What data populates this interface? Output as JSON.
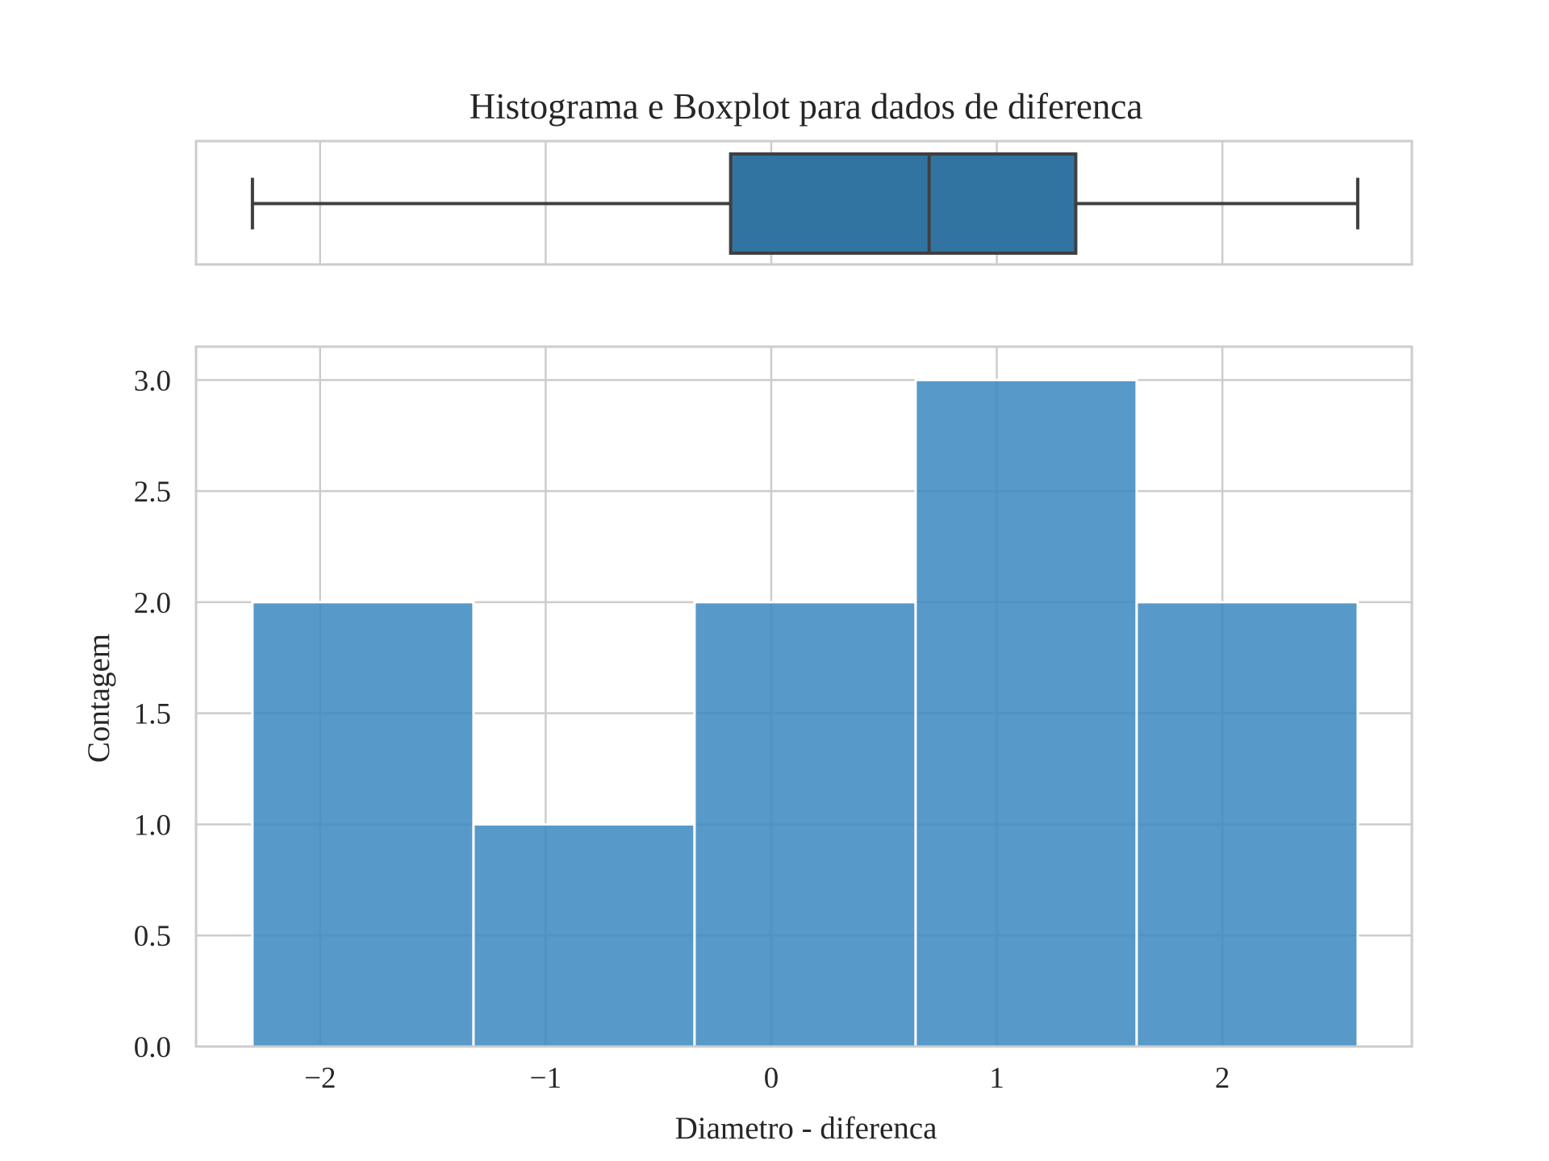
{
  "chart_data": [
    {
      "type": "box",
      "title": "Histograma e Boxplot para dados de diferenca",
      "whisker_low": -2.3,
      "q1": -0.18,
      "median": 0.7,
      "q3": 1.35,
      "whisker_high": 2.6,
      "xlim": [
        -2.55,
        2.84
      ],
      "grid": true,
      "color": "#3274a1"
    },
    {
      "type": "histogram",
      "xlabel": "Diametro - diferenca",
      "ylabel": "Contagem",
      "bin_edges": [
        -2.3,
        -1.32,
        -0.34,
        0.64,
        1.62,
        2.6
      ],
      "values": [
        2,
        1,
        2,
        3,
        2
      ],
      "xlim": [
        -2.55,
        2.84
      ],
      "ylim": [
        0,
        3.15
      ],
      "xticks": [
        -2,
        -1,
        0,
        1,
        2
      ],
      "xtick_labels": [
        "−2",
        "−1",
        "0",
        "1",
        "2"
      ],
      "yticks": [
        0,
        0.5,
        1,
        1.5,
        2,
        2.5,
        3
      ],
      "ytick_labels": [
        "0.0",
        "0.5",
        "1.0",
        "1.5",
        "2.0",
        "2.5",
        "3.0"
      ],
      "grid": true,
      "color": "#3a87c0"
    }
  ],
  "colors": {
    "grid": "#cccccc",
    "spine": "#cccccc",
    "box_fill": "#3274a1",
    "box_line": "#3f3f3f",
    "bar_fill": "#3a87c0",
    "text": "#262626"
  }
}
